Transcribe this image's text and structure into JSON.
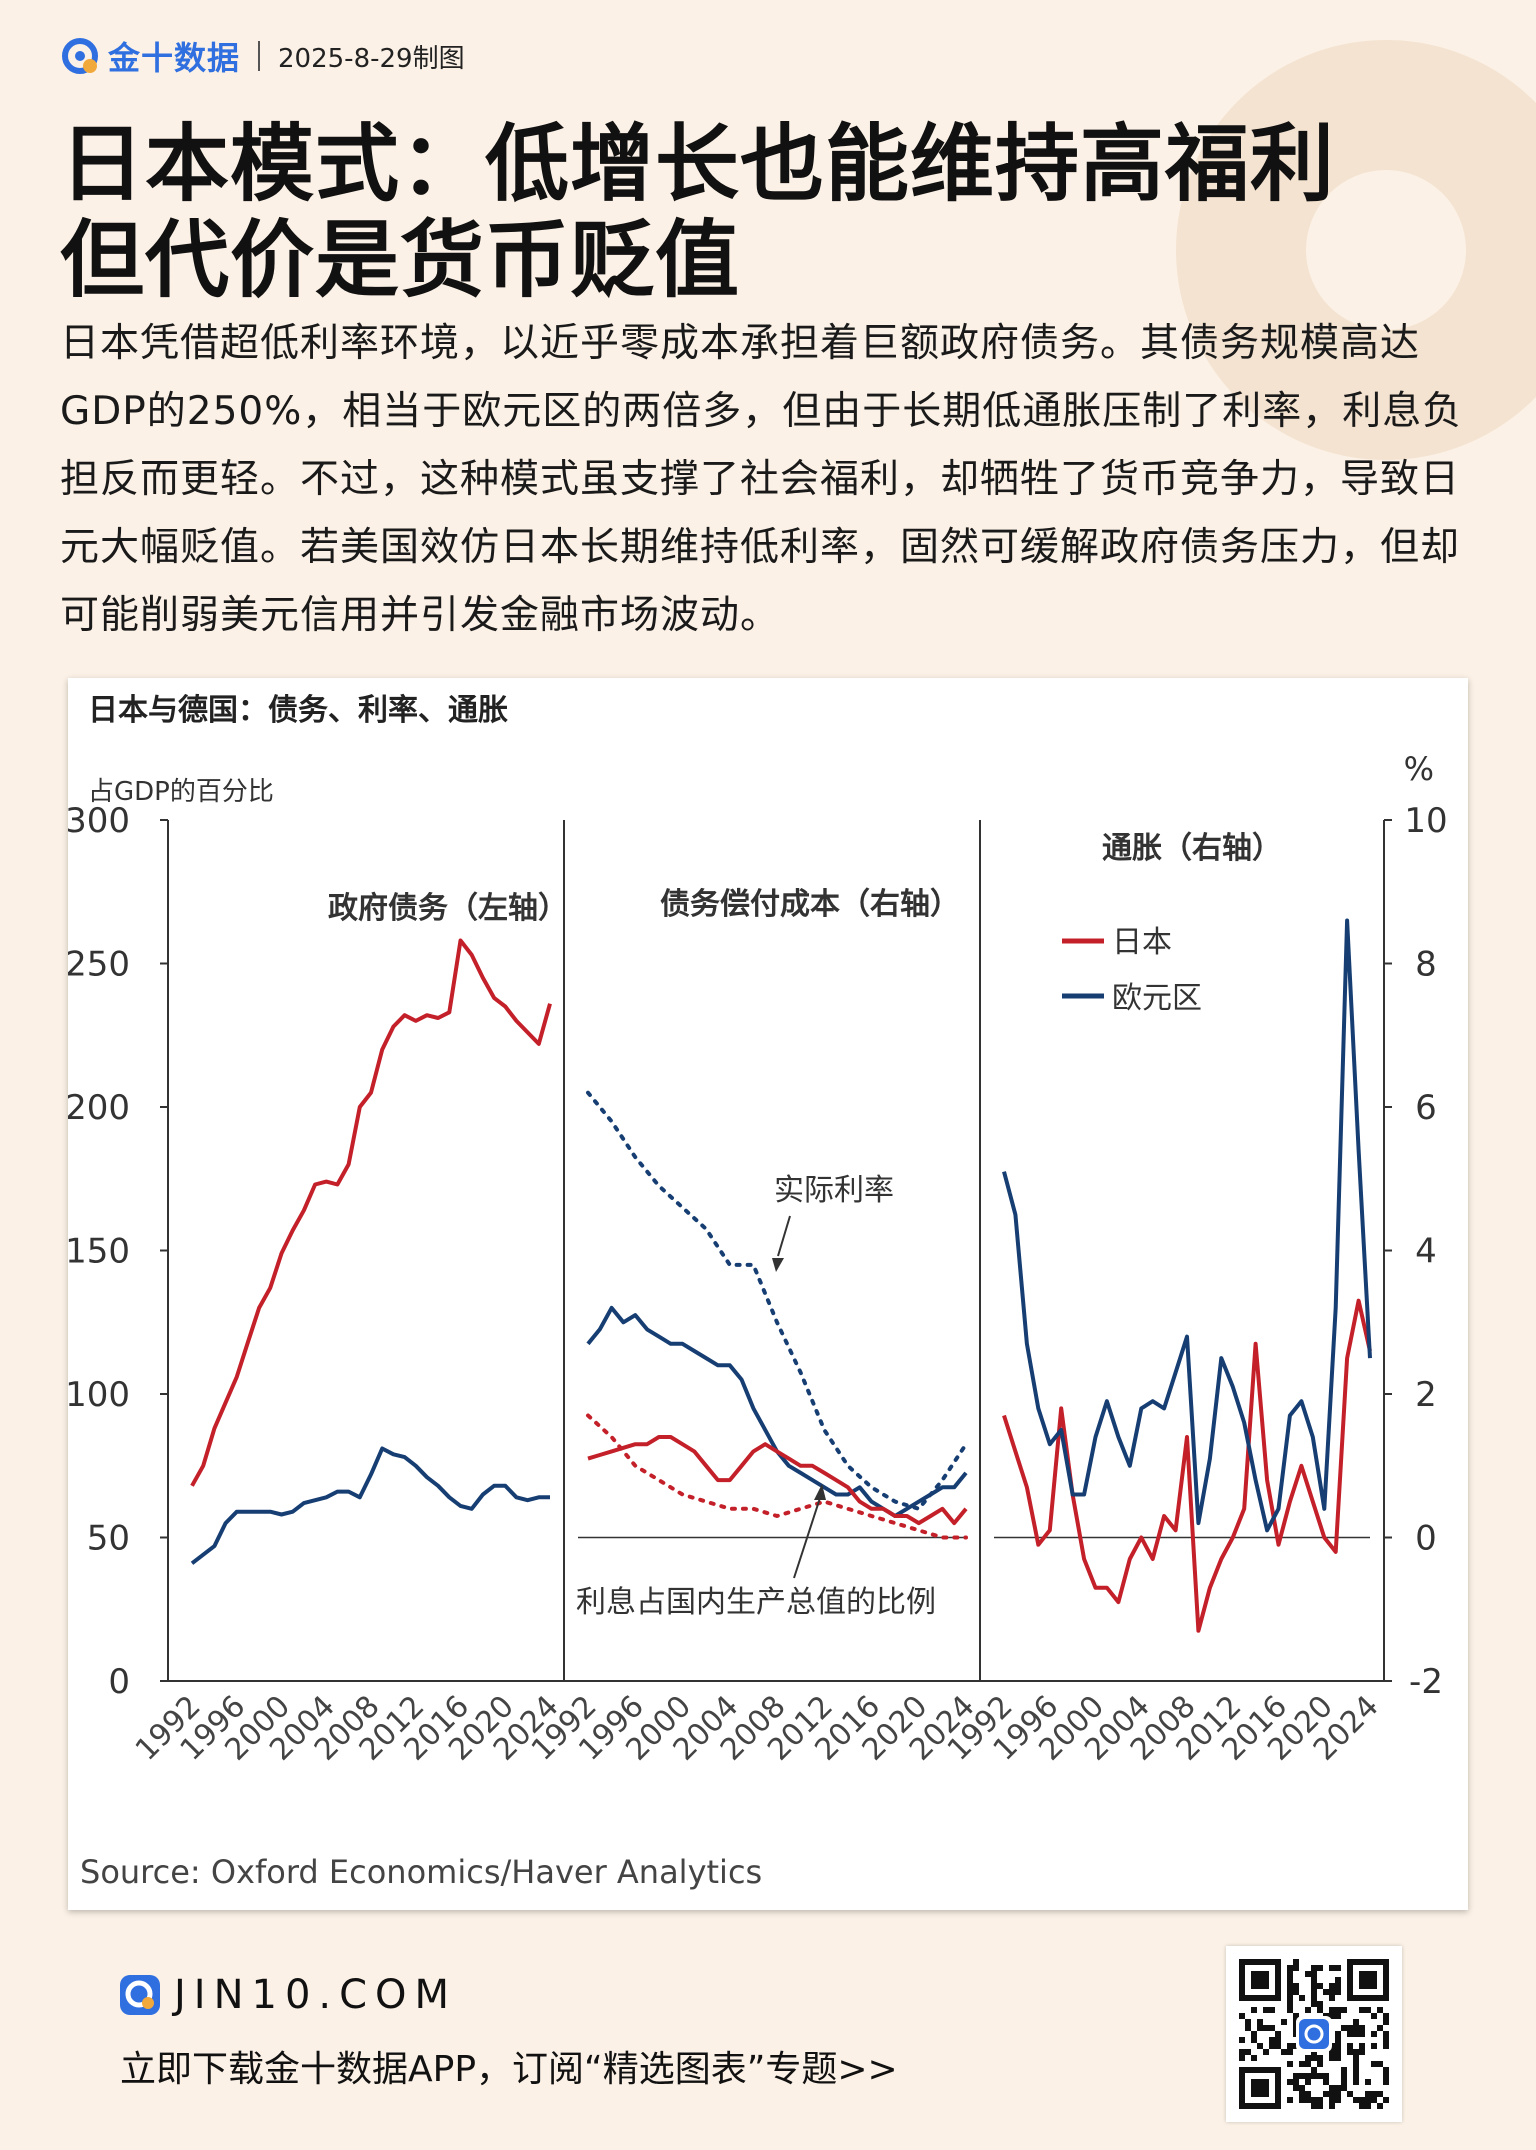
{
  "header": {
    "brand": "金十数据",
    "date": "2025-8-29制图"
  },
  "title_line1": "日本模式：低增长也能维持高福利",
  "title_line2": "但代价是货币贬值",
  "description": "日本凭借超低利率环境，以近乎零成本承担着巨额政府债务。其债务规模高达GDP的250%，相当于欧元区的两倍多，但由于长期低通胀压制了利率，利息负担反而更轻。不过，这种模式虽支撑了社会福利，却牺牲了货币竞争力，导致日元大幅贬值。若美国效仿日本长期维持低利率，固然可缓解政府债务压力，但却可能削弱美元信用并引发金融市场波动。",
  "footer": {
    "site": "JIN10.COM",
    "cta": "立即下载金十数据APP，订阅“精选图表”专题>>"
  },
  "colors": {
    "japan": "#c4202a",
    "euro": "#163e73",
    "accent": "#2f6fe0"
  },
  "chart_data": {
    "type": "line",
    "title": "日本与德国：债务、利率、通胀",
    "left_axis_label": "占GDP的百分比",
    "right_axis_label": "%",
    "left_ylim": [
      0,
      300
    ],
    "left_ticks": [
      "300",
      "250",
      "200",
      "150",
      "100",
      "50",
      "0"
    ],
    "right_ylim": [
      -2,
      10
    ],
    "right_ticks": [
      "10",
      "8",
      "6",
      "4",
      "2",
      "0",
      "-2"
    ],
    "source": "Source: Oxford Economics/Haver Analytics",
    "legend": {
      "japan": "日本",
      "euro": "欧元区"
    },
    "panels": [
      {
        "title": "政府债务（左轴）",
        "axis": "left",
        "x_ticks": [
          "1992",
          "1996",
          "2000",
          "2004",
          "2008",
          "2012",
          "2016",
          "2020",
          "2024"
        ],
        "series": [
          {
            "key": "japan",
            "style": "solid",
            "x": [
              1992,
              1993,
              1994,
              1995,
              1996,
              1997,
              1998,
              1999,
              2000,
              2001,
              2002,
              2003,
              2004,
              2005,
              2006,
              2007,
              2008,
              2009,
              2010,
              2011,
              2012,
              2013,
              2014,
              2015,
              2016,
              2017,
              2018,
              2019,
              2020,
              2021,
              2022,
              2023,
              2024
            ],
            "y": [
              68,
              75,
              88,
              97,
              106,
              118,
              130,
              137,
              149,
              157,
              164,
              173,
              174,
              173,
              180,
              200,
              205,
              220,
              228,
              232,
              230,
              232,
              231,
              233,
              258,
              253,
              245,
              238,
              235,
              230,
              226,
              222,
              236
            ]
          },
          {
            "key": "euro",
            "style": "solid",
            "x": [
              1992,
              1993,
              1994,
              1995,
              1996,
              1997,
              1998,
              1999,
              2000,
              2001,
              2002,
              2003,
              2004,
              2005,
              2006,
              2007,
              2008,
              2009,
              2010,
              2011,
              2012,
              2013,
              2014,
              2015,
              2016,
              2017,
              2018,
              2019,
              2020,
              2021,
              2022,
              2023,
              2024
            ],
            "y": [
              41,
              44,
              47,
              55,
              59,
              59,
              59,
              59,
              58,
              59,
              62,
              63,
              64,
              66,
              66,
              64,
              72,
              81,
              79,
              78,
              75,
              71,
              68,
              64,
              61,
              60,
              65,
              68,
              68,
              64,
              63,
              64,
              64
            ]
          }
        ]
      },
      {
        "title": "债务偿付成本（右轴）",
        "axis": "right",
        "x_ticks": [
          "1992",
          "1996",
          "2000",
          "2004",
          "2008",
          "2012",
          "2016",
          "2020",
          "2024"
        ],
        "annotations": [
          "实际利率",
          "利息占国内生产总值的比例"
        ],
        "series": [
          {
            "key": "euro",
            "style": "dotted",
            "name": "实际利率",
            "x": [
              1992,
              1994,
              1996,
              1998,
              2000,
              2002,
              2004,
              2006,
              2008,
              2010,
              2012,
              2014,
              2016,
              2018,
              2020,
              2022,
              2024
            ],
            "y": [
              6.2,
              5.8,
              5.3,
              4.9,
              4.6,
              4.3,
              3.8,
              3.8,
              3.0,
              2.3,
              1.5,
              1.0,
              0.7,
              0.5,
              0.4,
              0.8,
              1.3
            ]
          },
          {
            "key": "euro",
            "style": "solid",
            "name": "利息占国内生产总值的比例",
            "x": [
              1992,
              1993,
              1994,
              1995,
              1996,
              1997,
              1998,
              1999,
              2000,
              2001,
              2002,
              2003,
              2004,
              2005,
              2006,
              2007,
              2008,
              2009,
              2010,
              2011,
              2012,
              2013,
              2014,
              2015,
              2016,
              2017,
              2018,
              2019,
              2020,
              2021,
              2022,
              2023,
              2024
            ],
            "y": [
              2.7,
              2.9,
              3.2,
              3.0,
              3.1,
              2.9,
              2.8,
              2.7,
              2.7,
              2.6,
              2.5,
              2.4,
              2.4,
              2.2,
              1.8,
              1.5,
              1.2,
              1.0,
              0.9,
              0.8,
              0.7,
              0.6,
              0.6,
              0.7,
              0.5,
              0.4,
              0.3,
              0.4,
              0.5,
              0.6,
              0.7,
              0.7,
              0.9
            ]
          },
          {
            "key": "japan",
            "style": "dotted",
            "name": "实际利率",
            "x": [
              1992,
              1994,
              1996,
              1998,
              2000,
              2002,
              2004,
              2006,
              2008,
              2010,
              2012,
              2014,
              2016,
              2018,
              2020,
              2022,
              2024
            ],
            "y": [
              1.7,
              1.4,
              1.0,
              0.8,
              0.6,
              0.5,
              0.4,
              0.4,
              0.3,
              0.4,
              0.5,
              0.4,
              0.3,
              0.2,
              0.1,
              0.0,
              0.0
            ]
          },
          {
            "key": "japan",
            "style": "solid",
            "name": "利息占国内生产总值的比例",
            "x": [
              1992,
              1993,
              1994,
              1995,
              1996,
              1997,
              1998,
              1999,
              2000,
              2001,
              2002,
              2003,
              2004,
              2005,
              2006,
              2007,
              2008,
              2009,
              2010,
              2011,
              2012,
              2013,
              2014,
              2015,
              2016,
              2017,
              2018,
              2019,
              2020,
              2021,
              2022,
              2023,
              2024
            ],
            "y": [
              1.1,
              1.15,
              1.2,
              1.25,
              1.3,
              1.3,
              1.4,
              1.4,
              1.3,
              1.2,
              1.0,
              0.8,
              0.8,
              1.0,
              1.2,
              1.3,
              1.2,
              1.1,
              1.0,
              1.0,
              0.9,
              0.8,
              0.7,
              0.5,
              0.4,
              0.4,
              0.3,
              0.3,
              0.2,
              0.3,
              0.4,
              0.2,
              0.4
            ]
          }
        ]
      },
      {
        "title": "通胀（右轴）",
        "axis": "right",
        "x_ticks": [
          "1992",
          "1996",
          "2000",
          "2004",
          "2008",
          "2012",
          "2016",
          "2020",
          "2024"
        ],
        "series": [
          {
            "key": "japan",
            "style": "solid",
            "x": [
              1992,
              1993,
              1994,
              1995,
              1996,
              1997,
              1998,
              1999,
              2000,
              2001,
              2002,
              2003,
              2004,
              2005,
              2006,
              2007,
              2008,
              2009,
              2010,
              2011,
              2012,
              2013,
              2014,
              2015,
              2016,
              2017,
              2018,
              2019,
              2020,
              2021,
              2022,
              2023,
              2024
            ],
            "y": [
              1.7,
              1.2,
              0.7,
              -0.1,
              0.1,
              1.8,
              0.6,
              -0.3,
              -0.7,
              -0.7,
              -0.9,
              -0.3,
              0.0,
              -0.3,
              0.3,
              0.1,
              1.4,
              -1.3,
              -0.7,
              -0.3,
              0.0,
              0.4,
              2.7,
              0.8,
              -0.1,
              0.5,
              1.0,
              0.5,
              0.0,
              -0.2,
              2.5,
              3.3,
              2.6
            ]
          },
          {
            "key": "euro",
            "style": "solid",
            "x": [
              1992,
              1993,
              1994,
              1995,
              1996,
              1997,
              1998,
              1999,
              2000,
              2001,
              2002,
              2003,
              2004,
              2005,
              2006,
              2007,
              2008,
              2009,
              2010,
              2011,
              2012,
              2013,
              2014,
              2015,
              2016,
              2017,
              2018,
              2019,
              2020,
              2021,
              2022,
              2023,
              2024
            ],
            "y": [
              5.1,
              4.5,
              2.7,
              1.8,
              1.3,
              1.5,
              0.6,
              0.6,
              1.4,
              1.9,
              1.4,
              1.0,
              1.8,
              1.9,
              1.8,
              2.3,
              2.8,
              0.2,
              1.1,
              2.5,
              2.1,
              1.6,
              0.8,
              0.1,
              0.4,
              1.7,
              1.9,
              1.4,
              0.4,
              3.2,
              8.6,
              5.4,
              2.5
            ]
          }
        ]
      }
    ]
  }
}
